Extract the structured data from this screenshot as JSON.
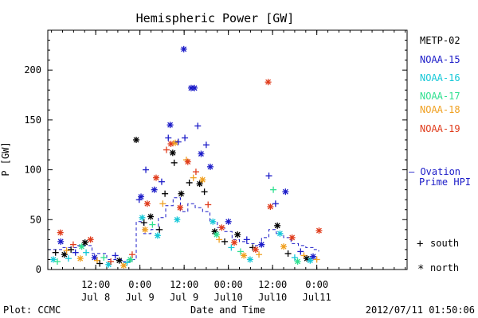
{
  "chart_data": {
    "type": "scatter",
    "title": "Hemispheric Power [GW]",
    "xlabel": "Date and Time",
    "ylabel": "P [GW]",
    "ylim": [
      0,
      240
    ],
    "yticks": [
      0,
      50,
      100,
      150,
      200
    ],
    "x_unit": "hours since 2012-07-07 23:00 UT",
    "xlim": [
      0,
      97.5
    ],
    "xticks": [
      {
        "x": 13,
        "line1": "12:00",
        "line2": "Jul 8"
      },
      {
        "x": 25,
        "line1": "0:00",
        "line2": "Jul 9"
      },
      {
        "x": 37,
        "line1": "12:00",
        "line2": "Jul 9"
      },
      {
        "x": 49,
        "line1": "00:00",
        "line2": "Jul10"
      },
      {
        "x": 61,
        "line1": "12:00",
        "line2": "Jul10"
      },
      {
        "x": 73,
        "line1": "0:00",
        "line2": "Jul11"
      }
    ],
    "legend_position": "right",
    "series": [
      {
        "name": "METP-02",
        "color": "#000000"
      },
      {
        "name": "NOAA-15",
        "color": "#1c1cc8"
      },
      {
        "name": "NOAA-16",
        "color": "#16c8d8"
      },
      {
        "name": "NOAA-17",
        "color": "#30e090"
      },
      {
        "name": "NOAA-18",
        "color": "#f0a020"
      },
      {
        "name": "NOAA-19",
        "color": "#e03c1c"
      }
    ],
    "marker_legend": [
      {
        "symbol": "+",
        "label": "south"
      },
      {
        "symbol": "*",
        "label": "north"
      }
    ],
    "reference_line": {
      "label_line1": "— Ovation",
      "label_line2": "Prime HPI",
      "color": "#1c1cc8"
    },
    "points": [
      {
        "s": "NOAA-15",
        "m": "*",
        "x": 3.5,
        "y": 28
      },
      {
        "s": "NOAA-19",
        "m": "*",
        "x": 3.4,
        "y": 37
      },
      {
        "s": "METP-02",
        "m": "+",
        "x": 2.1,
        "y": 17
      },
      {
        "s": "METP-02",
        "m": "*",
        "x": 4.5,
        "y": 15
      },
      {
        "s": "NOAA-16",
        "m": "*",
        "x": 1.5,
        "y": 10
      },
      {
        "s": "NOAA-17",
        "m": "+",
        "x": 2.6,
        "y": 8
      },
      {
        "s": "NOAA-18",
        "m": "+",
        "x": 5.1,
        "y": 19
      },
      {
        "s": "NOAA-16",
        "m": "+",
        "x": 5.6,
        "y": 11
      },
      {
        "s": "METP-02",
        "m": "+",
        "x": 6.3,
        "y": 20
      },
      {
        "s": "NOAA-19",
        "m": "+",
        "x": 6.9,
        "y": 25
      },
      {
        "s": "NOAA-15",
        "m": "+",
        "x": 7.5,
        "y": 17
      },
      {
        "s": "NOAA-18",
        "m": "*",
        "x": 8.8,
        "y": 11
      },
      {
        "s": "NOAA-17",
        "m": "*",
        "x": 9.2,
        "y": 23
      },
      {
        "s": "METP-02",
        "m": "*",
        "x": 10.1,
        "y": 27
      },
      {
        "s": "NOAA-16",
        "m": "+",
        "x": 10.4,
        "y": 17
      },
      {
        "s": "NOAA-19",
        "m": "*",
        "x": 11.6,
        "y": 30
      },
      {
        "s": "NOAA-15",
        "m": "*",
        "x": 12.7,
        "y": 12
      },
      {
        "s": "NOAA-18",
        "m": "+",
        "x": 13.4,
        "y": 9
      },
      {
        "s": "METP-02",
        "m": "+",
        "x": 14.1,
        "y": 6
      },
      {
        "s": "NOAA-17",
        "m": "+",
        "x": 15.2,
        "y": 12
      },
      {
        "s": "NOAA-16",
        "m": "*",
        "x": 16.5,
        "y": 5
      },
      {
        "s": "NOAA-19",
        "m": "+",
        "x": 17.1,
        "y": 8
      },
      {
        "s": "NOAA-15",
        "m": "+",
        "x": 18.3,
        "y": 14
      },
      {
        "s": "METP-02",
        "m": "*",
        "x": 19.4,
        "y": 9
      },
      {
        "s": "NOAA-18",
        "m": "*",
        "x": 20.6,
        "y": 4
      },
      {
        "s": "NOAA-16",
        "m": "+",
        "x": 21.5,
        "y": 7
      },
      {
        "s": "NOAA-17",
        "m": "*",
        "x": 22.4,
        "y": 10
      },
      {
        "s": "NOAA-19",
        "m": "+",
        "x": 22.9,
        "y": 15
      },
      {
        "s": "METP-02",
        "m": "*",
        "x": 24.0,
        "y": 130
      },
      {
        "s": "NOAA-15",
        "m": "+",
        "x": 24.8,
        "y": 70
      },
      {
        "s": "NOAA-15",
        "m": "*",
        "x": 25.3,
        "y": 73
      },
      {
        "s": "NOAA-16",
        "m": "*",
        "x": 25.6,
        "y": 52
      },
      {
        "s": "METP-02",
        "m": "+",
        "x": 26.1,
        "y": 47
      },
      {
        "s": "NOAA-15",
        "m": "+",
        "x": 26.6,
        "y": 100
      },
      {
        "s": "NOAA-19",
        "m": "*",
        "x": 27.0,
        "y": 66
      },
      {
        "s": "NOAA-18",
        "m": "*",
        "x": 26.4,
        "y": 40
      },
      {
        "s": "METP-02",
        "m": "*",
        "x": 27.9,
        "y": 53
      },
      {
        "s": "NOAA-17",
        "m": "+",
        "x": 28.4,
        "y": 45
      },
      {
        "s": "NOAA-15",
        "m": "*",
        "x": 28.9,
        "y": 80
      },
      {
        "s": "NOAA-19",
        "m": "*",
        "x": 29.4,
        "y": 92
      },
      {
        "s": "NOAA-16",
        "m": "*",
        "x": 29.8,
        "y": 34
      },
      {
        "s": "METP-02",
        "m": "+",
        "x": 30.3,
        "y": 40
      },
      {
        "s": "NOAA-15",
        "m": "+",
        "x": 30.9,
        "y": 88
      },
      {
        "s": "NOAA-18",
        "m": "+",
        "x": 31.2,
        "y": 66
      },
      {
        "s": "METP-02",
        "m": "+",
        "x": 31.8,
        "y": 76
      },
      {
        "s": "NOAA-19",
        "m": "+",
        "x": 32.2,
        "y": 120
      },
      {
        "s": "NOAA-15",
        "m": "+",
        "x": 32.7,
        "y": 132
      },
      {
        "s": "NOAA-15",
        "m": "*",
        "x": 33.2,
        "y": 145
      },
      {
        "s": "NOAA-19",
        "m": "*",
        "x": 33.4,
        "y": 126
      },
      {
        "s": "METP-02",
        "m": "*",
        "x": 33.9,
        "y": 117
      },
      {
        "s": "METP-02",
        "m": "+",
        "x": 34.3,
        "y": 107
      },
      {
        "s": "NOAA-18",
        "m": "*",
        "x": 34.6,
        "y": 127
      },
      {
        "s": "NOAA-16",
        "m": "*",
        "x": 35.1,
        "y": 50
      },
      {
        "s": "NOAA-15",
        "m": "+",
        "x": 35.4,
        "y": 128
      },
      {
        "s": "NOAA-19",
        "m": "*",
        "x": 35.9,
        "y": 62
      },
      {
        "s": "METP-02",
        "m": "*",
        "x": 36.2,
        "y": 76
      },
      {
        "s": "NOAA-15",
        "m": "*",
        "x": 36.9,
        "y": 221
      },
      {
        "s": "NOAA-15",
        "m": "+",
        "x": 37.2,
        "y": 132
      },
      {
        "s": "NOAA-18",
        "m": "+",
        "x": 37.6,
        "y": 110
      },
      {
        "s": "NOAA-19",
        "m": "*",
        "x": 38.0,
        "y": 108
      },
      {
        "s": "METP-02",
        "m": "+",
        "x": 38.4,
        "y": 87
      },
      {
        "s": "NOAA-15",
        "m": "*",
        "x": 38.9,
        "y": 182
      },
      {
        "s": "NOAA-15",
        "m": "*",
        "x": 39.8,
        "y": 182
      },
      {
        "s": "NOAA-18",
        "m": "+",
        "x": 39.5,
        "y": 92
      },
      {
        "s": "NOAA-19",
        "m": "+",
        "x": 40.2,
        "y": 98
      },
      {
        "s": "NOAA-15",
        "m": "+",
        "x": 40.7,
        "y": 144
      },
      {
        "s": "METP-02",
        "m": "*",
        "x": 41.2,
        "y": 86
      },
      {
        "s": "NOAA-15",
        "m": "*",
        "x": 41.6,
        "y": 116
      },
      {
        "s": "NOAA-18",
        "m": "*",
        "x": 42.0,
        "y": 90
      },
      {
        "s": "METP-02",
        "m": "+",
        "x": 42.5,
        "y": 78
      },
      {
        "s": "NOAA-15",
        "m": "+",
        "x": 43.0,
        "y": 125
      },
      {
        "s": "NOAA-19",
        "m": "+",
        "x": 43.5,
        "y": 65
      },
      {
        "s": "NOAA-15",
        "m": "*",
        "x": 44.1,
        "y": 103
      },
      {
        "s": "NOAA-16",
        "m": "*",
        "x": 44.8,
        "y": 48
      },
      {
        "s": "METP-02",
        "m": "*",
        "x": 45.3,
        "y": 38
      },
      {
        "s": "NOAA-17",
        "m": "*",
        "x": 45.8,
        "y": 35
      },
      {
        "s": "NOAA-18",
        "m": "+",
        "x": 46.5,
        "y": 30
      },
      {
        "s": "NOAA-19",
        "m": "*",
        "x": 47.2,
        "y": 42
      },
      {
        "s": "METP-02",
        "m": "+",
        "x": 48.0,
        "y": 28
      },
      {
        "s": "NOAA-15",
        "m": "*",
        "x": 49.0,
        "y": 48
      },
      {
        "s": "NOAA-16",
        "m": "+",
        "x": 49.8,
        "y": 22
      },
      {
        "s": "NOAA-19",
        "m": "*",
        "x": 50.6,
        "y": 27
      },
      {
        "s": "METP-02",
        "m": "*",
        "x": 51.5,
        "y": 35
      },
      {
        "s": "NOAA-17",
        "m": "+",
        "x": 52.3,
        "y": 18
      },
      {
        "s": "NOAA-18",
        "m": "*",
        "x": 53.2,
        "y": 14
      },
      {
        "s": "NOAA-15",
        "m": "+",
        "x": 54.0,
        "y": 30
      },
      {
        "s": "NOAA-16",
        "m": "*",
        "x": 54.9,
        "y": 10
      },
      {
        "s": "METP-02",
        "m": "+",
        "x": 55.6,
        "y": 22
      },
      {
        "s": "NOAA-19",
        "m": "*",
        "x": 56.4,
        "y": 20
      },
      {
        "s": "NOAA-18",
        "m": "+",
        "x": 57.3,
        "y": 15
      },
      {
        "s": "NOAA-15",
        "m": "*",
        "x": 58.0,
        "y": 25
      },
      {
        "s": "NOAA-19",
        "m": "*",
        "x": 59.8,
        "y": 188
      },
      {
        "s": "NOAA-15",
        "m": "+",
        "x": 60.0,
        "y": 94
      },
      {
        "s": "NOAA-19",
        "m": "*",
        "x": 60.4,
        "y": 63
      },
      {
        "s": "NOAA-17",
        "m": "+",
        "x": 61.2,
        "y": 80
      },
      {
        "s": "NOAA-15",
        "m": "+",
        "x": 61.8,
        "y": 66
      },
      {
        "s": "METP-02",
        "m": "*",
        "x": 62.3,
        "y": 44
      },
      {
        "s": "NOAA-16",
        "m": "*",
        "x": 63.0,
        "y": 36
      },
      {
        "s": "NOAA-15",
        "m": "*",
        "x": 64.5,
        "y": 78
      },
      {
        "s": "NOAA-18",
        "m": "*",
        "x": 64.0,
        "y": 23
      },
      {
        "s": "METP-02",
        "m": "+",
        "x": 65.2,
        "y": 16
      },
      {
        "s": "NOAA-19",
        "m": "*",
        "x": 66.3,
        "y": 32
      },
      {
        "s": "NOAA-16",
        "m": "+",
        "x": 67.0,
        "y": 12
      },
      {
        "s": "NOAA-17",
        "m": "*",
        "x": 67.8,
        "y": 8
      },
      {
        "s": "NOAA-15",
        "m": "+",
        "x": 68.6,
        "y": 18
      },
      {
        "s": "NOAA-18",
        "m": "+",
        "x": 69.5,
        "y": 14
      },
      {
        "s": "METP-02",
        "m": "*",
        "x": 70.3,
        "y": 11
      },
      {
        "s": "NOAA-16",
        "m": "*",
        "x": 71.2,
        "y": 9
      },
      {
        "s": "NOAA-15",
        "m": "*",
        "x": 72.0,
        "y": 13
      },
      {
        "s": "NOAA-18",
        "m": "+",
        "x": 73.0,
        "y": 10
      },
      {
        "s": "NOAA-19",
        "m": "*",
        "x": 73.6,
        "y": 39
      }
    ]
  },
  "footer": {
    "credit": "Plot: CCMC",
    "timestamp": "2012/07/11 01:50:06"
  }
}
